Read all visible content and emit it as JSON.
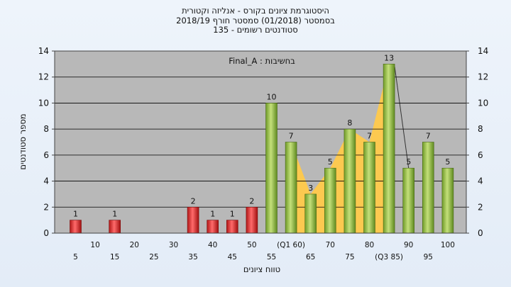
{
  "header": {
    "title_line1": "היסטוגרמת ציונים בקורס - אנליזה וקטורית",
    "title_line2": "בסמסטר  (01/2018)  סמסטר חורף  2018/19",
    "title_line3": "סטודנטים רשומים - 135"
  },
  "chart_data": {
    "type": "bar",
    "xlabel": "טווח ציונים",
    "ylabel": "מספר סטודנטים",
    "annotation": "בחשיבות : Final_A",
    "ylim": [
      0,
      14
    ],
    "yticks": [
      0,
      2,
      4,
      6,
      8,
      10,
      12,
      14
    ],
    "grid": true,
    "bin_labels_lower": [
      "5",
      "15",
      "25",
      "35",
      "45",
      "55",
      "65",
      "75",
      "(Q3 85)",
      "95"
    ],
    "bin_labels_upper": [
      "10",
      "20",
      "30",
      "40",
      "50",
      "(Q1 60)",
      "70",
      "80",
      "90",
      "100"
    ],
    "bins": [
      5,
      10,
      15,
      20,
      25,
      30,
      35,
      40,
      45,
      50,
      55,
      60,
      65,
      70,
      75,
      80,
      85,
      90,
      95,
      100
    ],
    "values": [
      1,
      0,
      1,
      0,
      0,
      0,
      2,
      1,
      1,
      2,
      10,
      7,
      3,
      5,
      8,
      7,
      13,
      5,
      7,
      5
    ],
    "failing_bins": [
      5,
      10,
      15,
      20,
      25,
      30,
      35,
      40,
      45,
      50
    ],
    "interquartile_band": {
      "from": 60,
      "to": 85
    },
    "colors": {
      "failing": "#e03030",
      "passing": "#8fbf3a",
      "band": "#ffc94a",
      "plot_bg": "#b8b8b8",
      "grid": "#000000"
    }
  }
}
